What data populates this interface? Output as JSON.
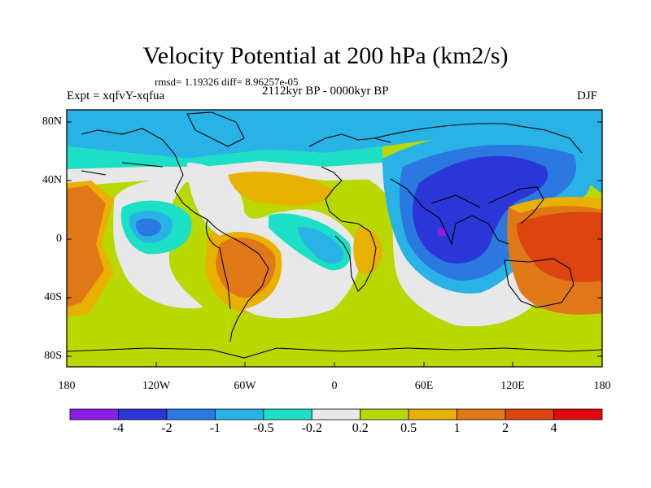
{
  "title": "Velocity Potential at 200 hPa (km2/s)",
  "stats": "rmsd= 1.19326 diff= 8.96257e-05",
  "experiment": "Expt = xqfvY-xqfua",
  "period": "2112kyr BP - 0000kyr BP",
  "season": "DJF",
  "axes": {
    "y_ticks": [
      "80N",
      "40N",
      "0",
      "40S",
      "80S"
    ],
    "x_ticks": [
      "180",
      "120W",
      "60W",
      "0",
      "60E",
      "120E",
      "180"
    ]
  },
  "colorbar": {
    "colors": [
      "#8a1ee6",
      "#2a36d6",
      "#2a78e0",
      "#28b2e6",
      "#1ce0c6",
      "#e8e8e8",
      "#b8d800",
      "#e8b000",
      "#e07818",
      "#dc4410",
      "#e00a0a"
    ],
    "labels": [
      "-4",
      "-2",
      "-1",
      "-0.5",
      "-0.2",
      "0.2",
      "0.5",
      "1",
      "2",
      "4"
    ]
  }
}
